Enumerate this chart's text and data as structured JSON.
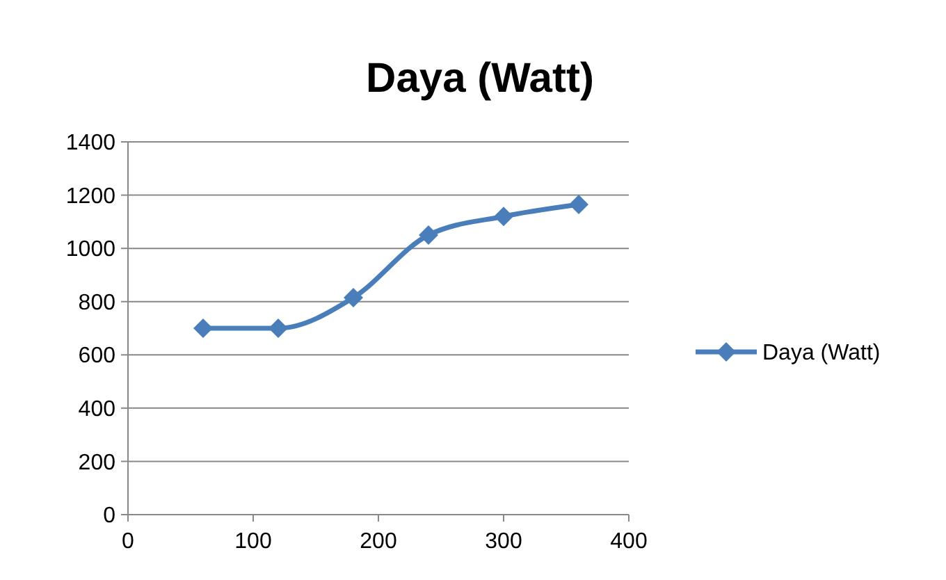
{
  "chart_data": {
    "type": "line",
    "title": "Daya (Watt)",
    "x": [
      60,
      120,
      180,
      240,
      300,
      360
    ],
    "series": [
      {
        "name": "Daya (Watt)",
        "color": "#4a7ebb",
        "values": [
          700,
          700,
          815,
          1050,
          1120,
          1165
        ]
      }
    ],
    "xlim": [
      0,
      400
    ],
    "xticks": [
      0,
      100,
      200,
      300,
      400
    ],
    "ylim": [
      0,
      1400
    ],
    "yticks": [
      0,
      200,
      400,
      600,
      800,
      1000,
      1200,
      1400
    ],
    "grid": "y",
    "legend": "right",
    "marker": "diamond",
    "line_style": "solid"
  }
}
